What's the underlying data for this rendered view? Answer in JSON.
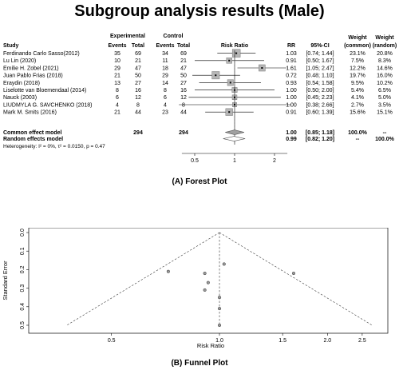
{
  "title": "Subgroup analysis results (Male)",
  "forest": {
    "caption": "(A) Forest Plot",
    "headers": {
      "study": "Study",
      "experimental": "Experimental",
      "control": "Control",
      "events": "Events",
      "total": "Total",
      "risk_ratio": "Risk Ratio",
      "rr": "RR",
      "ci": "95%-CI",
      "weight": "Weight",
      "common": "(common)",
      "random": "(random)"
    },
    "studies": [
      {
        "study": "Ferdinando Carlo Sasso(2012)",
        "e_events": "35",
        "e_total": "69",
        "c_events": "34",
        "c_total": "69",
        "rr": "1.03",
        "ci": "[0.74; 1.44]",
        "w_common": "23.1%",
        "w_random": "20.8%"
      },
      {
        "study": "Lu Lin (2020)",
        "e_events": "10",
        "e_total": "21",
        "c_events": "11",
        "c_total": "21",
        "rr": "0.91",
        "ci": "[0.50; 1.67]",
        "w_common": "7.5%",
        "w_random": "8.3%"
      },
      {
        "study": "Emilie H. Zobel (2021)",
        "e_events": "29",
        "e_total": "47",
        "c_events": "18",
        "c_total": "47",
        "rr": "1.61",
        "ci": "[1.05; 2.47]",
        "w_common": "12.2%",
        "w_random": "14.6%"
      },
      {
        "study": "Juan Pablo Frias (2018)",
        "e_events": "21",
        "e_total": "50",
        "c_events": "29",
        "c_total": "50",
        "rr": "0.72",
        "ci": "[0.48; 1.10]",
        "w_common": "19.7%",
        "w_random": "16.0%"
      },
      {
        "study": "Eraydin (2018)",
        "e_events": "13",
        "e_total": "27",
        "c_events": "14",
        "c_total": "27",
        "rr": "0.93",
        "ci": "[0.54; 1.58]",
        "w_common": "9.5%",
        "w_random": "10.2%"
      },
      {
        "study": "Liselotte van Bloemendaal (2014)",
        "e_events": "8",
        "e_total": "16",
        "c_events": "8",
        "c_total": "16",
        "rr": "1.00",
        "ci": "[0.50; 2.00]",
        "w_common": "5.4%",
        "w_random": "6.5%"
      },
      {
        "study": "Nauck (2003)",
        "e_events": "6",
        "e_total": "12",
        "c_events": "6",
        "c_total": "12",
        "rr": "1.00",
        "ci": "[0.45; 2.23]",
        "w_common": "4.1%",
        "w_random": "5.0%"
      },
      {
        "study": "LIUDMYLA G. SAVCHENKO (2018)",
        "e_events": "4",
        "e_total": "8",
        "c_events": "4",
        "c_total": "8",
        "rr": "1.00",
        "ci": "[0.38; 2.66]",
        "w_common": "2.7%",
        "w_random": "3.5%"
      },
      {
        "study": "Mark M. Smits (2016)",
        "e_events": "21",
        "e_total": "44",
        "c_events": "23",
        "c_total": "44",
        "rr": "0.91",
        "ci": "[0.60; 1.39]",
        "w_common": "15.6%",
        "w_random": "15.1%"
      }
    ],
    "common": {
      "label": "Common effect model",
      "e_total": "294",
      "c_total": "294",
      "rr": "1.00",
      "ci": "[0.85; 1.18]",
      "w_common": "100.0%",
      "w_random": "--"
    },
    "random": {
      "label": "Random effects model",
      "rr": "0.99",
      "ci": "[0.82; 1.20]",
      "w_common": "--",
      "w_random": "100.0%"
    },
    "heterogeneity": "Heterogeneity: I² = 0%, τ² = 0.0150, p = 0.47",
    "axis_ticks": [
      "0.5",
      "1",
      "2"
    ]
  },
  "chart_data": [
    {
      "type": "scatter",
      "title": "Subgroup analysis results (Male)",
      "subtitle": "(A) Forest Plot",
      "xlabel": "Risk Ratio",
      "x_scale": "log",
      "xlim": [
        0.4,
        2.5
      ],
      "x_ticks": [
        0.5,
        1,
        2
      ],
      "categories": [
        "Ferdinando Carlo Sasso(2012)",
        "Lu Lin (2020)",
        "Emilie H. Zobel (2021)",
        "Juan Pablo Frias (2018)",
        "Eraydin (2018)",
        "Liselotte van Bloemendaal (2014)",
        "Nauck (2003)",
        "LIUDMYLA G. SAVCHENKO (2018)",
        "Mark M. Smits (2016)"
      ],
      "rr": [
        1.03,
        0.91,
        1.61,
        0.72,
        0.93,
        1.0,
        1.0,
        1.0,
        0.91
      ],
      "ci_low": [
        0.74,
        0.5,
        1.05,
        0.48,
        0.54,
        0.5,
        0.45,
        0.38,
        0.6
      ],
      "ci_high": [
        1.44,
        1.67,
        2.47,
        1.1,
        1.58,
        2.0,
        2.23,
        2.66,
        1.39
      ],
      "weight_common": [
        23.1,
        7.5,
        12.2,
        19.7,
        9.5,
        5.4,
        4.1,
        2.7,
        15.6
      ],
      "pooled": [
        {
          "model": "Common effect model",
          "rr": 1.0,
          "ci": [
            0.85,
            1.18
          ]
        },
        {
          "model": "Random effects model",
          "rr": 0.99,
          "ci": [
            0.82,
            1.2
          ]
        }
      ]
    },
    {
      "type": "scatter",
      "subtitle": "(B) Funnel Plot",
      "xlabel": "Risk Ratio",
      "ylabel": "Standard Error",
      "x_scale": "log",
      "xlim": [
        0.3,
        2.8
      ],
      "ylim": [
        0.5,
        0.0
      ],
      "y_inverted": true,
      "x_ticks": [
        0.5,
        1.0,
        1.5,
        2.0,
        2.5
      ],
      "x_tick_labels": [
        "0.5",
        "1.0",
        "1.5",
        "2.0",
        "2.5"
      ],
      "y_ticks": [
        0.0,
        0.1,
        0.2,
        0.3,
        0.4,
        0.5
      ],
      "y_tick_labels": [
        "0.0",
        "0.1",
        "0.2",
        "0.3",
        "0.4",
        "0.5"
      ],
      "points": [
        {
          "x": 1.03,
          "y": 0.17
        },
        {
          "x": 0.91,
          "y": 0.31
        },
        {
          "x": 1.61,
          "y": 0.22
        },
        {
          "x": 0.72,
          "y": 0.21
        },
        {
          "x": 0.93,
          "y": 0.27
        },
        {
          "x": 1.0,
          "y": 0.35
        },
        {
          "x": 1.0,
          "y": 0.41
        },
        {
          "x": 1.0,
          "y": 0.5
        },
        {
          "x": 0.91,
          "y": 0.22
        }
      ],
      "pooled_rr": 1.0,
      "grid": false
    }
  ]
}
